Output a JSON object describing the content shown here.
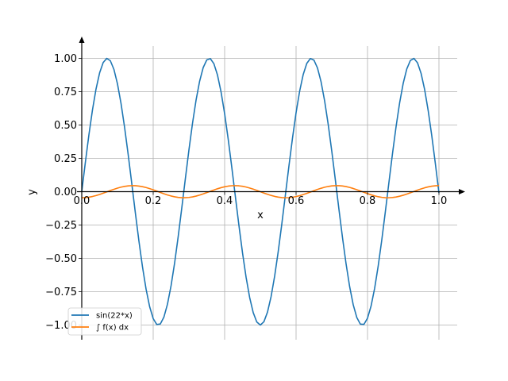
{
  "chart_data": {
    "type": "line",
    "title": "",
    "xlabel": "x",
    "ylabel": "y",
    "xlim": [
      0.0,
      1.0
    ],
    "ylim": [
      -1.0,
      1.0
    ],
    "grid": true,
    "legend_position": "lower-left",
    "x_ticks": [
      "0.0",
      "0.2",
      "0.4",
      "0.6",
      "0.8",
      "1.0"
    ],
    "y_ticks": [
      "1.00",
      "0.75",
      "0.50",
      "0.25",
      "0.00",
      "−0.25",
      "−0.50",
      "−0.75",
      "−1.00"
    ],
    "series": [
      {
        "name": "sin(22*x)",
        "color": "#1f77b4",
        "expression": "sin(22*x)"
      },
      {
        "name": "∫ f(x) dx",
        "color": "#ff7f0e",
        "expression": "(1-cos(22*x))/22 - 1/22"
      }
    ]
  }
}
